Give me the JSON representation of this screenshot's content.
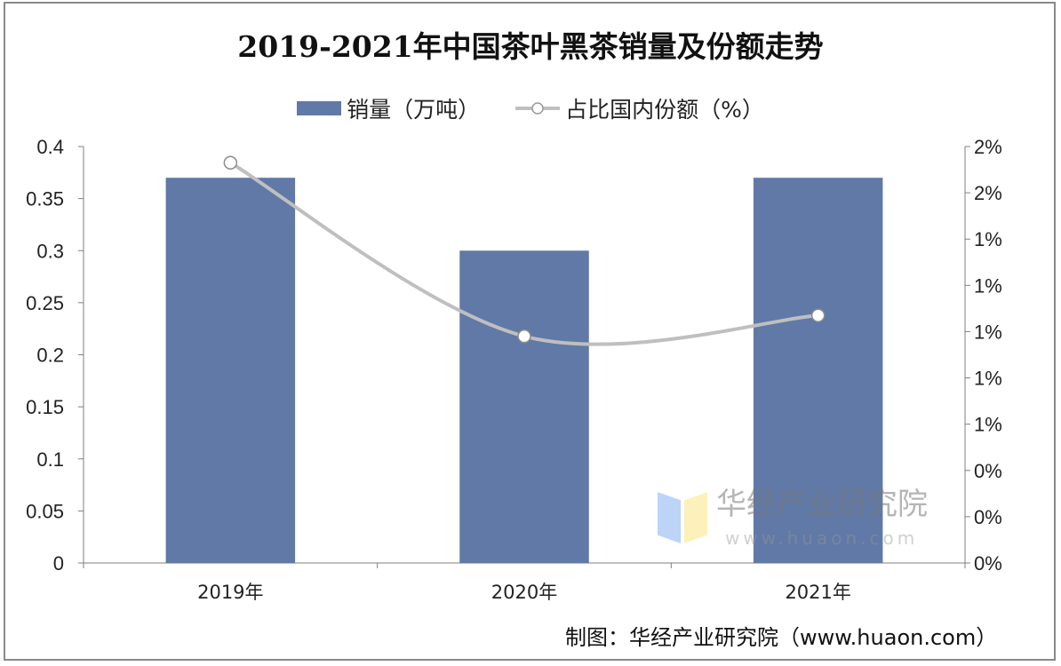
{
  "chart_data": {
    "type": "bar+line",
    "title": "2019-2021年中国茶叶黑茶销量及份额走势",
    "categories": [
      "2019年",
      "2020年",
      "2021年"
    ],
    "series": [
      {
        "name": "销量（万吨）",
        "type": "bar",
        "axis": "left",
        "values": [
          0.37,
          0.3,
          0.37
        ],
        "color": "#6079a6"
      },
      {
        "name": "占比国内份额（%）",
        "type": "line",
        "axis": "right",
        "values": [
          1.73,
          0.98,
          1.07
        ],
        "color": "#bfbfbf",
        "smooth": true,
        "marker": "hollow-circle"
      }
    ],
    "y_left": {
      "range": [
        0,
        0.4
      ],
      "ticks": [
        "0",
        "0.05",
        "0.1",
        "0.15",
        "0.2",
        "0.25",
        "0.3",
        "0.35",
        "0.4"
      ]
    },
    "y_right": {
      "range": [
        0,
        1.8
      ],
      "ticks": [
        "0%",
        "0%",
        "0%",
        "1%",
        "1%",
        "1%",
        "1%",
        "1%",
        "2%",
        "2%"
      ]
    },
    "grid": false,
    "legend": "top"
  },
  "source": "制图：华经产业研究院（www.huaon.com）",
  "watermark": {
    "name": "华经产业研究院",
    "url": "www.huaon.com"
  }
}
